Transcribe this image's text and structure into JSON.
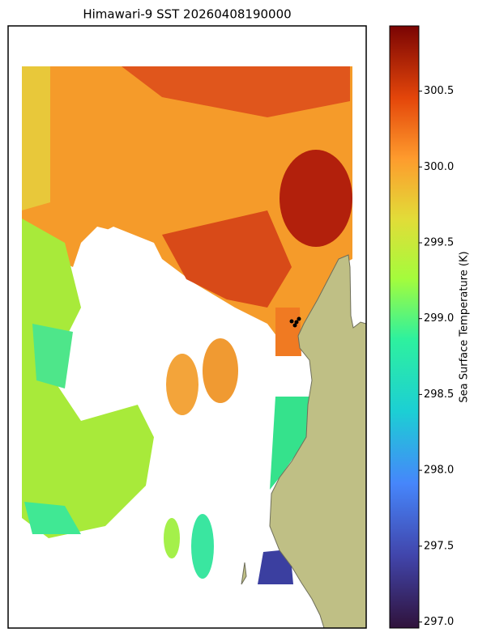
{
  "title": "Himawari-9 SST 20260408190000",
  "colorbar": {
    "label": "Sea Surface Temperature (K)",
    "lim": [
      296.96,
      300.93
    ],
    "ticks": [
      {
        "value": 297,
        "label": "297.0"
      },
      297.5,
      {
        "value": 298,
        "label": "298.0"
      },
      298.5,
      {
        "value": 299,
        "label": "299.0"
      },
      299.5,
      {
        "value": 300,
        "label": "300.0"
      },
      300.5
    ]
  }
}
